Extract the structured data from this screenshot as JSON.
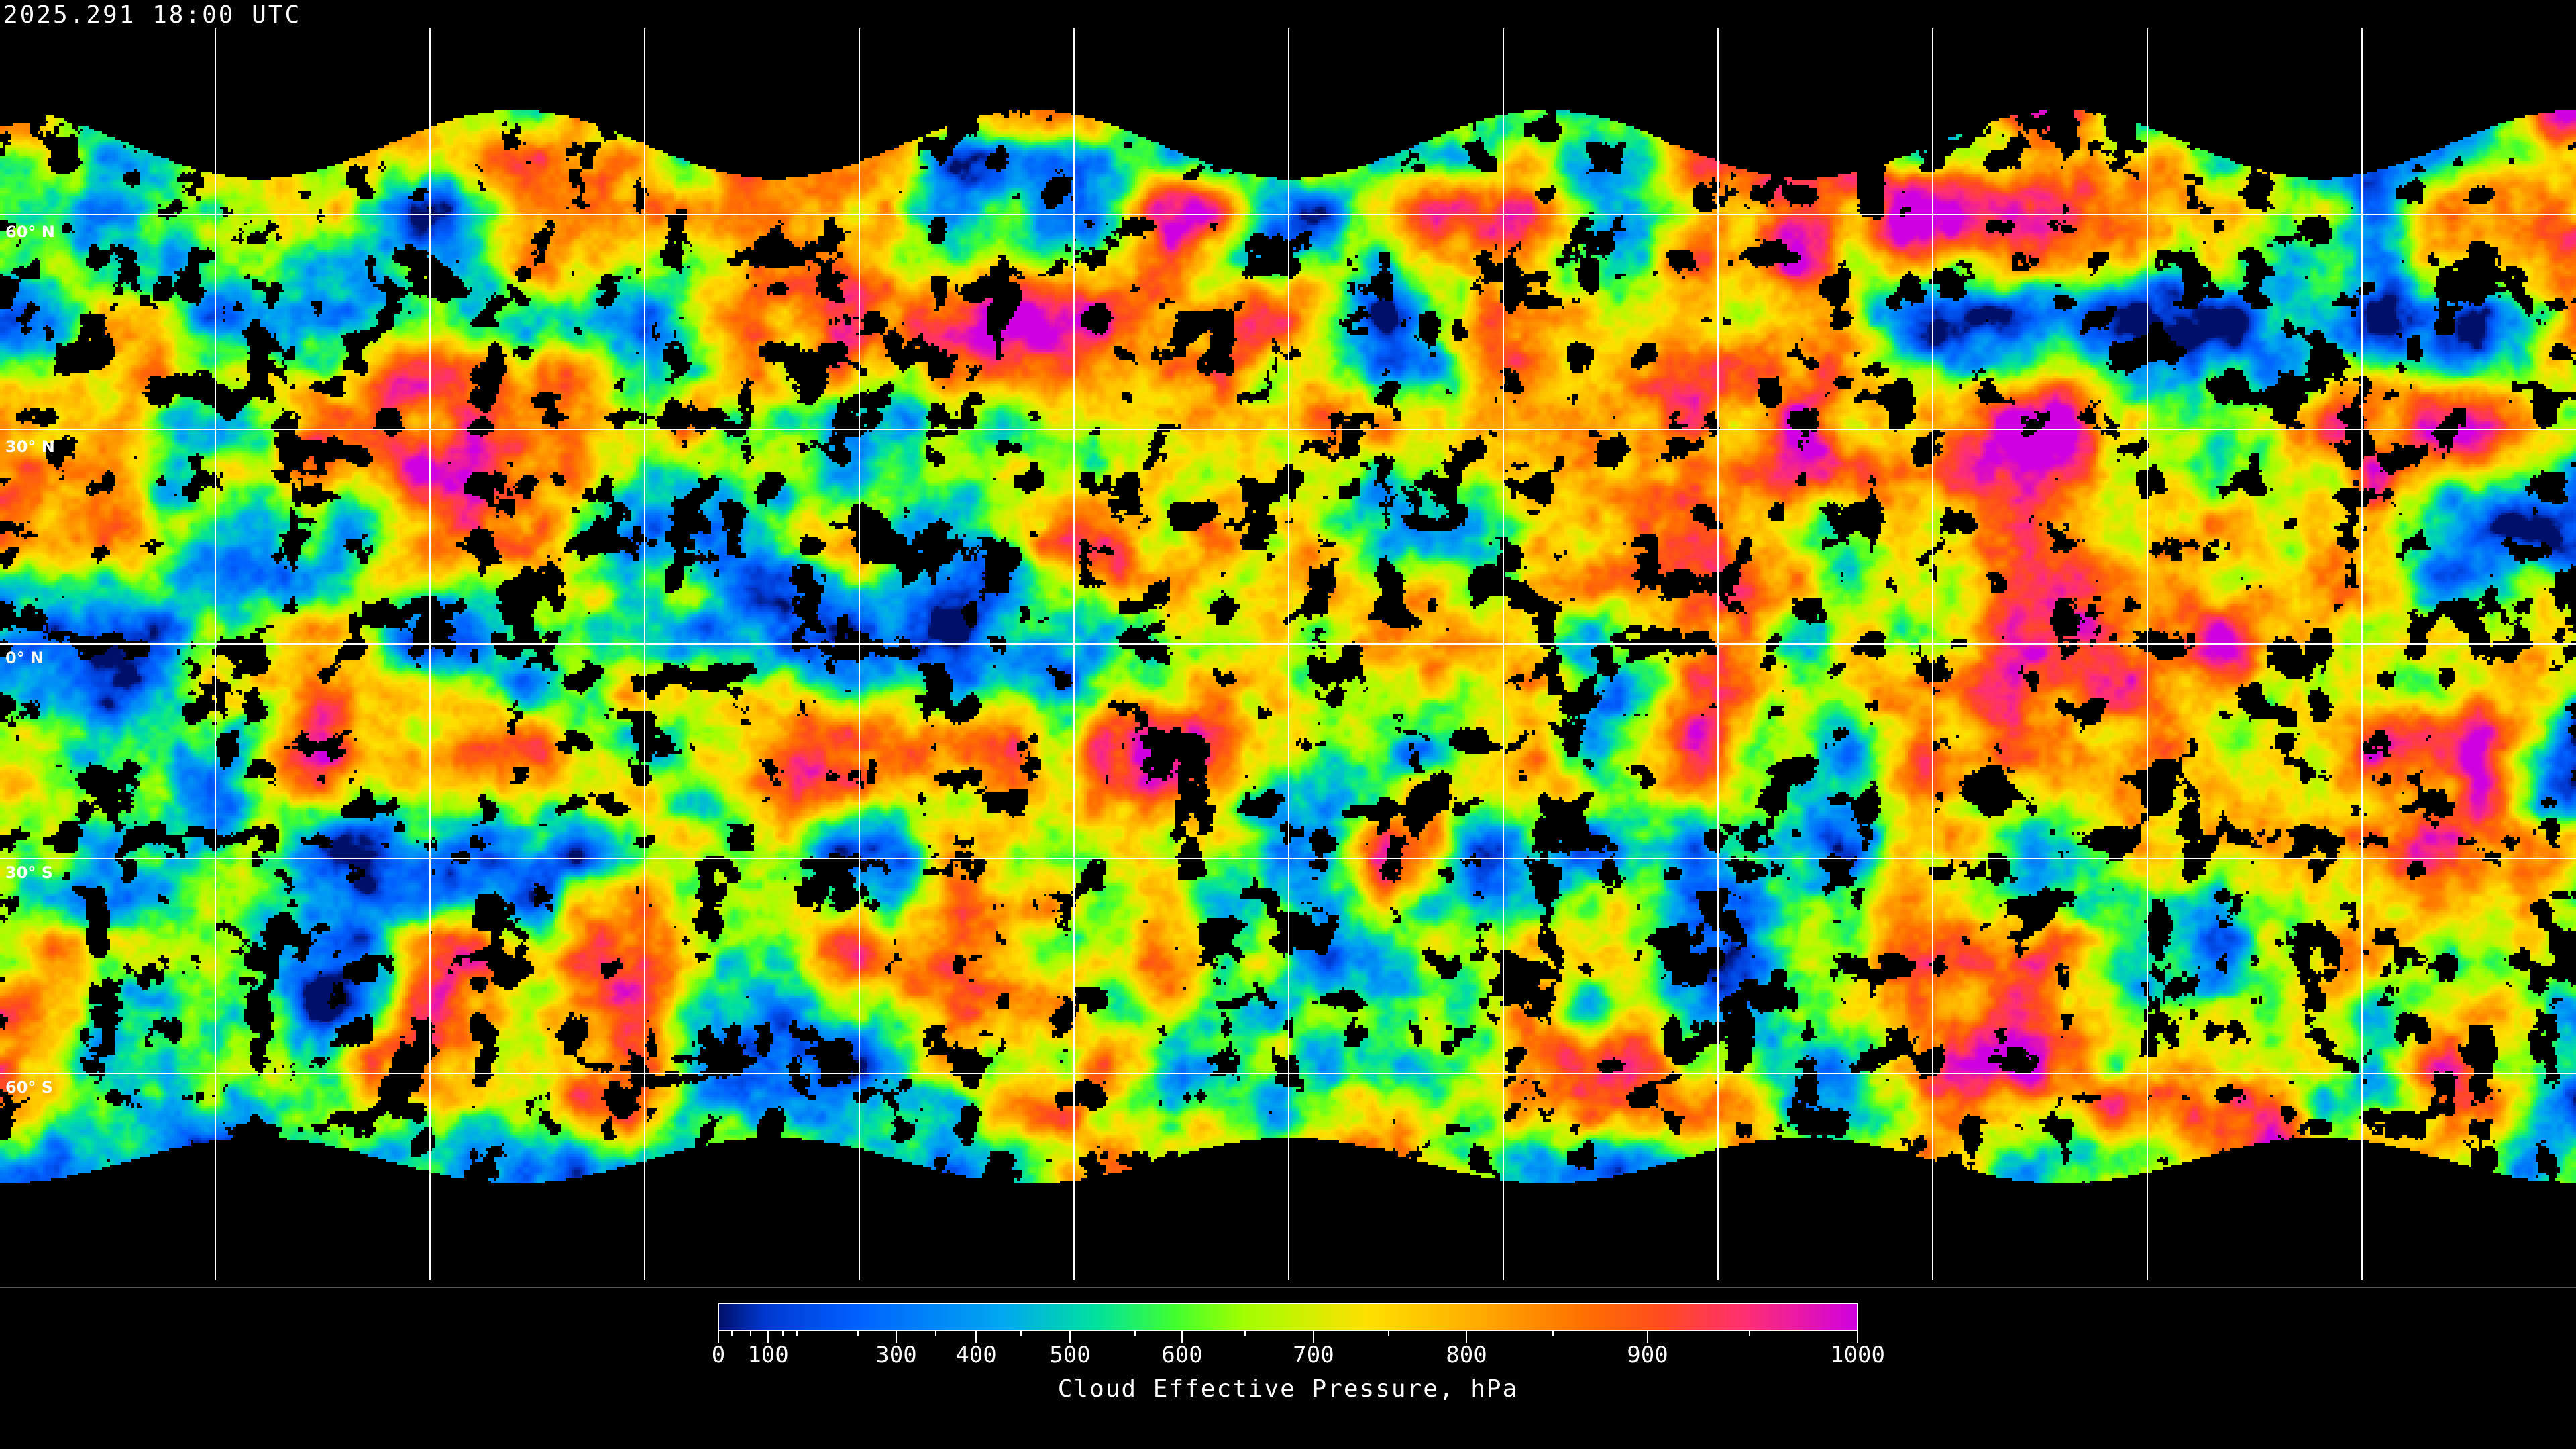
{
  "timestamp": "2025.291 18:00 UTC",
  "map": {
    "projection": "equirectangular",
    "product": "cloud effective pressure",
    "graticule_spacing_deg": 30,
    "latitude_labels": [
      "60° N",
      "30° N",
      "0° N",
      "30° S",
      "60° S"
    ],
    "no_data_color": "#000000",
    "coastline_color": "#ffffff"
  },
  "colorbar": {
    "title": "Cloud Effective Pressure, hPa",
    "min": 0,
    "max": 1000,
    "tick_labels": [
      "0",
      "100",
      "300",
      "400",
      "500",
      "600",
      "700",
      "800",
      "900",
      "1000"
    ],
    "colormap": [
      "#00106a",
      "#0038d0",
      "#0060ff",
      "#00a8f0",
      "#00e0a0",
      "#40ff30",
      "#a0ff00",
      "#ffe000",
      "#ffb000",
      "#ff7000",
      "#ff4a20",
      "#ff3070",
      "#d000e0"
    ]
  }
}
